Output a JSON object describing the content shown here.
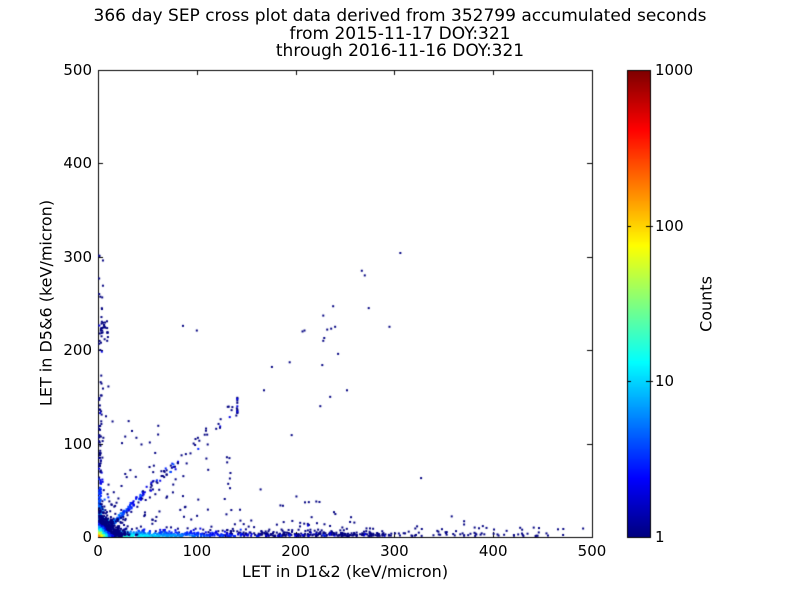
{
  "chart_data": {
    "type": "scatter",
    "title": "366 day SEP cross plot data derived from 352799 accumulated seconds",
    "subtitle_lines": [
      "from 2015-11-17 DOY:321",
      "through 2016-11-16 DOY:321"
    ],
    "xlabel": "LET in D1&2 (keV/micron)",
    "ylabel": "LET in D5&6 (keV/micron)",
    "xlim": [
      0,
      500
    ],
    "ylim": [
      0,
      500
    ],
    "x_ticks": {
      "values": [
        0,
        100,
        200,
        300,
        400,
        500
      ],
      "labels": [
        "0",
        "100",
        "200",
        "300",
        "400",
        "500"
      ]
    },
    "y_ticks": {
      "values": [
        0,
        100,
        200,
        300,
        400,
        500
      ],
      "labels": [
        "0",
        "100",
        "200",
        "300",
        "400",
        "500"
      ]
    },
    "grid": false,
    "legend": "none",
    "colorbar": {
      "label": "Counts",
      "scale": "log",
      "min": 1,
      "max": 1000,
      "tick_values": [
        1,
        10,
        100,
        1000
      ],
      "tick_labels": [
        "1",
        "10",
        "100",
        "1000"
      ],
      "colormap": "jet"
    },
    "colors": {
      "spine": "#000000",
      "text": "#000000",
      "background": "#ffffff",
      "count_1": "#000080",
      "count_10": "#00d0ff",
      "count_100": "#ffd000",
      "count_1000": "#800000"
    },
    "description": "2D histogram cross plot: very dense hot (green/yellow) cluster at the origin, dense dark-blue band along the x-axis fading out near x=290 with sparse tail to ~470, a column of points along the y-axis up to ~300 with a small cluster near y=220, a diagonal y=x band out to ~140 with sparse diagonal continuation up to (305,303), and sparse count-1 scatter in the lower-left triangle.",
    "render_seed": 20151117,
    "clusters": [
      {
        "name": "lower-left-triangle-scatter",
        "type": "triangle",
        "n": 150,
        "x_max": 260,
        "y_max": 130,
        "x_pow": 1.3,
        "y_pow": 2.0,
        "count": 1
      },
      {
        "name": "x-axis-sparse-tail",
        "type": "uniform_band_x",
        "n": 85,
        "x_min": 250,
        "x_max": 470,
        "y_scale": 4,
        "count": 1
      },
      {
        "name": "y-axis-column",
        "type": "band_y",
        "n": 170,
        "y_decay": 70,
        "y_max": 300,
        "x_scale": 1.6,
        "amp": 16,
        "amp_decay": 25
      },
      {
        "name": "y-axis-cluster-220",
        "type": "blob",
        "n": 26,
        "cx": 5,
        "cy": 222,
        "sx": 4,
        "sy": 16,
        "count": 1
      },
      {
        "name": "diagonal-band",
        "type": "diagonal",
        "n": 230,
        "decay": 45,
        "max": 140,
        "spread": 4.5,
        "amp": 10,
        "amp_decay": 20
      },
      {
        "name": "x-axis-dense-band",
        "type": "band_x",
        "n": 750,
        "x_max": 290,
        "x_pow": 1.7,
        "y_scale": 2.2,
        "amp": 28,
        "amp_decay_x": 55,
        "amp_decay_y": 4
      },
      {
        "name": "origin-hot-core",
        "type": "exp2d",
        "n": 1100,
        "scale": 6.5,
        "clip": 55,
        "amp": 160,
        "count_scale": 3.2
      }
    ],
    "outlier_points": [
      [
        305,
        303
      ],
      [
        266,
        284
      ],
      [
        269,
        279
      ],
      [
        273,
        244
      ],
      [
        237,
        246
      ],
      [
        227,
        236
      ],
      [
        231,
        221
      ],
      [
        239,
        224
      ],
      [
        208,
        220
      ],
      [
        228,
        212
      ],
      [
        294,
        224
      ],
      [
        242,
        195
      ],
      [
        226,
        183
      ],
      [
        193,
        186
      ],
      [
        175,
        181
      ],
      [
        167,
        156
      ],
      [
        224,
        139
      ],
      [
        234,
        149
      ],
      [
        251,
        156
      ],
      [
        135,
        138
      ],
      [
        139,
        129
      ],
      [
        195,
        108
      ],
      [
        206,
        219
      ],
      [
        227,
        209
      ],
      [
        235,
        222
      ],
      [
        326,
        62
      ],
      [
        357,
        21
      ],
      [
        440,
        9
      ],
      [
        490,
        8
      ],
      [
        85,
        225
      ],
      [
        99,
        220
      ],
      [
        4,
        295
      ],
      [
        4,
        268
      ],
      [
        3,
        243
      ],
      [
        2,
        207
      ],
      [
        9,
        213
      ],
      [
        121,
        120
      ],
      [
        110,
        98
      ],
      [
        60,
        118
      ],
      [
        43,
        98
      ],
      [
        30,
        123
      ]
    ]
  }
}
